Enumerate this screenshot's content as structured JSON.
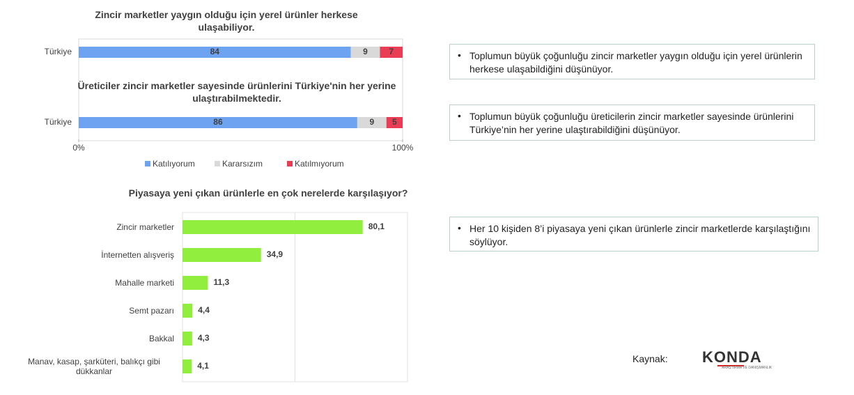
{
  "chart_data": [
    {
      "type": "stacked_bar",
      "panel_titles": [
        "Zincir marketler yaygın olduğu için yerel ürünler herkese ulaşabiliyor.",
        "Üreticiler zincir marketler sayesinde ürünlerini Türkiye'nin her yerine ulaştırabilmektedir."
      ],
      "categories": [
        "Türkiye",
        "Türkiye"
      ],
      "series": [
        {
          "name": "Katılıyorum",
          "color": "#6ea3f2",
          "values": [
            84,
            86
          ]
        },
        {
          "name": "Kararsızım",
          "color": "#d9d9d9",
          "values": [
            9,
            9
          ]
        },
        {
          "name": "Katılmıyorum",
          "color": "#ea3c55",
          "values": [
            7,
            5
          ]
        }
      ],
      "xlim": [
        0,
        100
      ],
      "xticks": [
        {
          "value": 0,
          "label": "0%"
        },
        {
          "value": 100,
          "label": "100%"
        }
      ]
    },
    {
      "type": "bar",
      "title": "Piyasaya yeni çıkan ürünlerle en çok nerelerde karşılaşıyor?",
      "categories": [
        "Zincir marketler",
        "İnternetten alışveriş",
        "Mahalle marketi",
        "Semt pazarı",
        "Bakkal",
        "Manav, kasap, şarküteri, balıkçı gibi dükkanlar"
      ],
      "values": [
        80.1,
        34.9,
        11.3,
        4.4,
        4.3,
        4.1
      ],
      "value_labels": [
        "80,1",
        "34,9",
        "11,3",
        "4,4",
        "4,3",
        "4,1"
      ],
      "color": "#92ee3e",
      "xlim": [
        0,
        100
      ],
      "gridlines": [
        0,
        50,
        100
      ]
    }
  ],
  "notes": [
    "Toplumun büyük çoğunluğu zincir marketler yaygın olduğu için yerel ürünlerin herkese ulaşabildiğini düşünüyor.",
    "Toplumun büyük çoğunluğu üreticilerin zincir marketler sayesinde ürünlerini Türkiye’nin her yerine ulaştırabildiğini düşünüyor.",
    "Her 10 kişiden 8’i piyasaya yeni çıkan ürünlerle zincir marketlerde karşılaştığını söylüyor."
  ],
  "source": {
    "label": "Kaynak:",
    "logo": "KONDA",
    "logo_subtitle": "ARAŞTIRMA VE DANIŞMANLIK"
  }
}
